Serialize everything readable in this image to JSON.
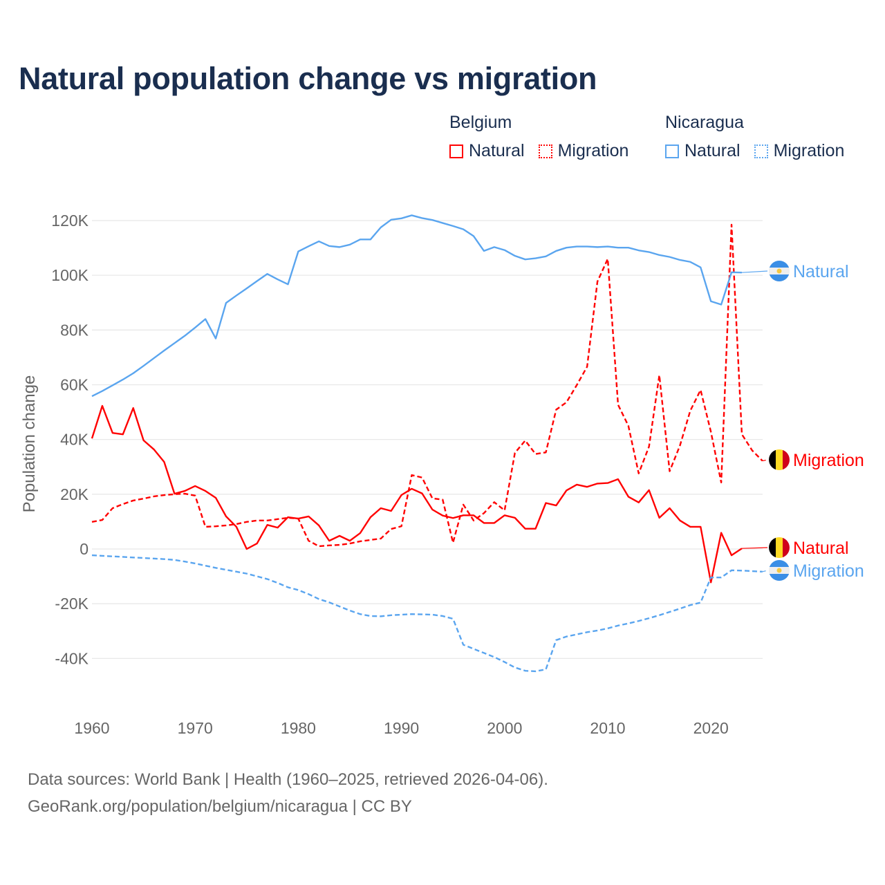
{
  "chart_data": {
    "type": "line",
    "title": "Natural population change vs migration",
    "xlabel": "",
    "ylabel": "Population change",
    "xlim": [
      1960,
      2025
    ],
    "ylim": [
      -60000,
      130000
    ],
    "x_ticks": [
      1960,
      1970,
      1980,
      1990,
      2000,
      2010,
      2020
    ],
    "x_tick_labels": [
      "1960",
      "1970",
      "1980",
      "1990",
      "2000",
      "2010",
      "2020"
    ],
    "y_ticks": [
      -40000,
      -20000,
      0,
      20000,
      40000,
      60000,
      80000,
      100000,
      120000
    ],
    "y_tick_labels": [
      "-40K",
      "-20K",
      "0",
      "20K",
      "40K",
      "60K",
      "80K",
      "100K",
      "120K"
    ],
    "grid": true,
    "legend_placement": "top-right",
    "legend_groups": [
      {
        "country": "Belgium",
        "items": [
          "Natural",
          "Migration"
        ]
      },
      {
        "country": "Nicaragua",
        "items": [
          "Natural",
          "Migration"
        ]
      }
    ],
    "series": [
      {
        "name": "Belgium Natural",
        "country": "Belgium",
        "label": "Natural",
        "color": "#ff0000",
        "dash": "solid",
        "flag": "belgium-flag",
        "start_year": 1960,
        "values": [
          40400,
          52300,
          42400,
          41900,
          51500,
          39700,
          36400,
          31800,
          20200,
          21200,
          23000,
          21200,
          18700,
          11900,
          8100,
          0,
          2000,
          8800,
          7800,
          11600,
          11100,
          11900,
          8600,
          3000,
          4800,
          3000,
          5800,
          11600,
          14900,
          13900,
          19700,
          22000,
          20300,
          14400,
          12200,
          11300,
          12300,
          12300,
          9500,
          9500,
          12300,
          11400,
          7400,
          7400,
          16800,
          15900,
          21400,
          23500,
          22700,
          23900,
          24100,
          25500,
          19100,
          17000,
          21500,
          11400,
          14900,
          10400,
          8100,
          8100,
          -12200,
          5900,
          -2300,
          200
        ]
      },
      {
        "name": "Belgium Migration",
        "country": "Belgium",
        "label": "Migration",
        "color": "#ff0000",
        "dash": "dashed",
        "flag": "belgium-flag",
        "start_year": 1960,
        "values": [
          9900,
          10600,
          14900,
          16400,
          17700,
          18400,
          19200,
          19700,
          20000,
          20200,
          19500,
          8100,
          8300,
          8600,
          9100,
          9900,
          10400,
          10400,
          10900,
          11400,
          11100,
          3000,
          1000,
          1300,
          1500,
          2000,
          2800,
          3300,
          3800,
          7300,
          8300,
          27000,
          26100,
          18500,
          18000,
          2300,
          16200,
          10400,
          13100,
          17100,
          14100,
          35100,
          39600,
          34700,
          35300,
          50900,
          53600,
          59900,
          66600,
          97700,
          106000,
          52700,
          45000,
          27600,
          37400,
          63500,
          28400,
          37800,
          50500,
          58100,
          42800,
          24300,
          118500,
          41900,
          36000,
          32200
        ]
      },
      {
        "name": "Nicaragua Natural",
        "country": "Nicaragua",
        "label": "Natural",
        "color": "#5aa5ef",
        "dash": "solid",
        "flag": "nicaragua-flag",
        "start_year": 1960,
        "values": [
          55800,
          57700,
          59800,
          61900,
          64200,
          66900,
          69700,
          72500,
          75200,
          77900,
          80900,
          84000,
          76900,
          89900,
          92600,
          95200,
          97900,
          100500,
          98500,
          96700,
          108700,
          110600,
          112400,
          110700,
          110300,
          111200,
          113100,
          113100,
          117500,
          120300,
          120800,
          121900,
          120900,
          120200,
          119100,
          118000,
          116800,
          114300,
          108900,
          110300,
          109200,
          107100,
          105800,
          106200,
          106900,
          108900,
          110100,
          110500,
          110500,
          110300,
          110500,
          110100,
          110100,
          109100,
          108500,
          107400,
          106700,
          105600,
          104900,
          102900,
          90500,
          89300,
          101100,
          101000
        ]
      },
      {
        "name": "Nicaragua Migration",
        "country": "Nicaragua",
        "label": "Migration",
        "color": "#5aa5ef",
        "dash": "dashed",
        "flag": "nicaragua-flag",
        "start_year": 1960,
        "values": [
          -2300,
          -2500,
          -2700,
          -2900,
          -3100,
          -3300,
          -3500,
          -3700,
          -4000,
          -4600,
          -5300,
          -6100,
          -6900,
          -7600,
          -8300,
          -9000,
          -10000,
          -11000,
          -12400,
          -14000,
          -15000,
          -16500,
          -18300,
          -19500,
          -21000,
          -22500,
          -23800,
          -24500,
          -24600,
          -24200,
          -24000,
          -23800,
          -23900,
          -24000,
          -24500,
          -25500,
          -35000,
          -36500,
          -38000,
          -39500,
          -41300,
          -43300,
          -44500,
          -44700,
          -44000,
          -33300,
          -32000,
          -31200,
          -30400,
          -29800,
          -29000,
          -28000,
          -27200,
          -26300,
          -25300,
          -24200,
          -23000,
          -21800,
          -20500,
          -19600,
          -10400,
          -10400,
          -7800,
          -7900,
          -8100,
          -8300
        ]
      }
    ]
  },
  "legend": {
    "belgium": {
      "title": "Belgium",
      "natural": "Natural",
      "migration": "Migration"
    },
    "nicaragua": {
      "title": "Nicaragua",
      "natural": "Natural",
      "migration": "Migration"
    }
  },
  "source": {
    "line1": "Data sources: World Bank | Health (1960–2025, retrieved 2026-04-06).",
    "line2": "GeoRank.org/population/belgium/nicaragua | CC BY"
  },
  "colors": {
    "title": "#1a2e4f",
    "belgium": "#ff0000",
    "nicaragua": "#5aa5ef",
    "grid": "#e8e8e8",
    "axis_text": "#666666"
  }
}
